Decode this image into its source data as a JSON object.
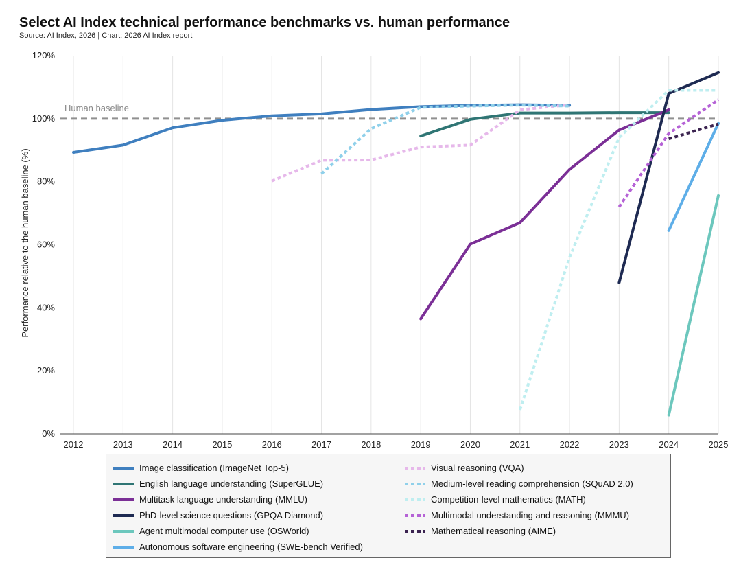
{
  "header": {
    "title": "Select AI Index technical performance benchmarks vs. human performance",
    "source": "Source: AI Index, 2026 | Chart: 2026 AI Index report"
  },
  "chart_data": {
    "type": "line",
    "title": "Select AI Index technical performance benchmarks vs. human performance",
    "subtitle": "Source: AI Index, 2026 | Chart: 2026 AI Index report",
    "xlabel": "",
    "ylabel": "Performance relative to the human baseline (%)",
    "xlim": [
      2012,
      2025
    ],
    "ylim": [
      0,
      120
    ],
    "x_ticks": [
      "2012",
      "2013",
      "2014",
      "2015",
      "2016",
      "2017",
      "2018",
      "2019",
      "2020",
      "2021",
      "2022",
      "2023",
      "2024",
      "2025"
    ],
    "y_ticks": [
      {
        "value": 0,
        "label": "0%"
      },
      {
        "value": 20,
        "label": "20%"
      },
      {
        "value": 40,
        "label": "40%"
      },
      {
        "value": 60,
        "label": "60%"
      },
      {
        "value": 80,
        "label": "80%"
      },
      {
        "value": 100,
        "label": "100%"
      },
      {
        "value": 120,
        "label": "120%"
      }
    ],
    "grid": "vertical",
    "legend_position": "bottom",
    "baseline": {
      "value": 100,
      "label": "Human baseline",
      "color": "#909090"
    },
    "series": [
      {
        "name": "Image classification (ImageNet Top-5)",
        "color": "#3f7fbf",
        "style": "solid",
        "x": [
          2012,
          2013,
          2014,
          2015,
          2016,
          2017,
          2018,
          2019,
          2020,
          2021,
          2022
        ],
        "y": [
          89.3,
          91.6,
          97.1,
          99.5,
          100.9,
          101.5,
          102.9,
          103.8,
          104.2,
          104.4,
          104.2
        ]
      },
      {
        "name": "English language understanding (SuperGLUE)",
        "color": "#2f7574",
        "style": "solid",
        "x": [
          2019,
          2020,
          2021,
          2022,
          2023,
          2024
        ],
        "y": [
          94.5,
          99.8,
          101.8,
          101.8,
          101.9,
          101.9
        ]
      },
      {
        "name": "Multitask language understanding (MMLU)",
        "color": "#7b2f96",
        "style": "solid",
        "x": [
          2019,
          2020,
          2021,
          2022,
          2023,
          2024
        ],
        "y": [
          36.5,
          60.2,
          67.0,
          83.9,
          96.4,
          102.8
        ]
      },
      {
        "name": "PhD-level science questions (GPQA Diamond)",
        "color": "#1e2a52",
        "style": "solid",
        "x": [
          2023,
          2024,
          2025
        ],
        "y": [
          48.0,
          108.0,
          114.6
        ]
      },
      {
        "name": "Agent multimodal computer use (OSWorld)",
        "color": "#6cc7bd",
        "style": "solid",
        "x": [
          2024,
          2025
        ],
        "y": [
          6.0,
          75.6
        ]
      },
      {
        "name": "Autonomous software engineering (SWE-bench Verified)",
        "color": "#5eaee8",
        "style": "solid",
        "x": [
          2024,
          2025
        ],
        "y": [
          64.5,
          98.5
        ]
      },
      {
        "name": "Visual reasoning (VQA)",
        "color": "#e6b8ea",
        "style": "dotted",
        "x": [
          2016,
          2017,
          2018,
          2019,
          2020,
          2021,
          2022
        ],
        "y": [
          80.2,
          86.8,
          86.9,
          91.0,
          91.6,
          102.8,
          104.4
        ]
      },
      {
        "name": "Medium-level reading comprehension (SQuAD 2.0)",
        "color": "#8fd0ea",
        "style": "dotted",
        "x": [
          2017,
          2018,
          2019,
          2020,
          2021,
          2022
        ],
        "y": [
          82.5,
          96.8,
          103.6,
          104.0,
          104.3,
          104.0
        ]
      },
      {
        "name": "Competition-level mathematics (MATH)",
        "color": "#bfeef0",
        "style": "dotted",
        "x": [
          2021,
          2022,
          2023,
          2024,
          2025
        ],
        "y": [
          7.6,
          56.0,
          94.0,
          109.0,
          109.0
        ]
      },
      {
        "name": "Multimodal understanding and reasoning (MMMU)",
        "color": "#b562d6",
        "style": "dotted",
        "x": [
          2023,
          2024,
          2025
        ],
        "y": [
          72.0,
          95.3,
          106.0
        ]
      },
      {
        "name": "Mathematical reasoning (AIME)",
        "color": "#3b2350",
        "style": "dotted",
        "x": [
          2024,
          2025
        ],
        "y": [
          93.6,
          98.3
        ]
      }
    ]
  },
  "legend": {
    "left": [
      "Image classification (ImageNet Top-5)",
      "English language understanding (SuperGLUE)",
      "Multitask language understanding (MMLU)",
      "PhD-level science questions (GPQA Diamond)",
      "Agent multimodal computer use (OSWorld)",
      "Autonomous software engineering (SWE-bench Verified)"
    ],
    "right": [
      "Visual reasoning (VQA)",
      "Medium-level reading comprehension (SQuAD 2.0)",
      "Competition-level mathematics (MATH)",
      "Multimodal understanding and reasoning (MMMU)",
      "Mathematical reasoning (AIME)"
    ]
  }
}
